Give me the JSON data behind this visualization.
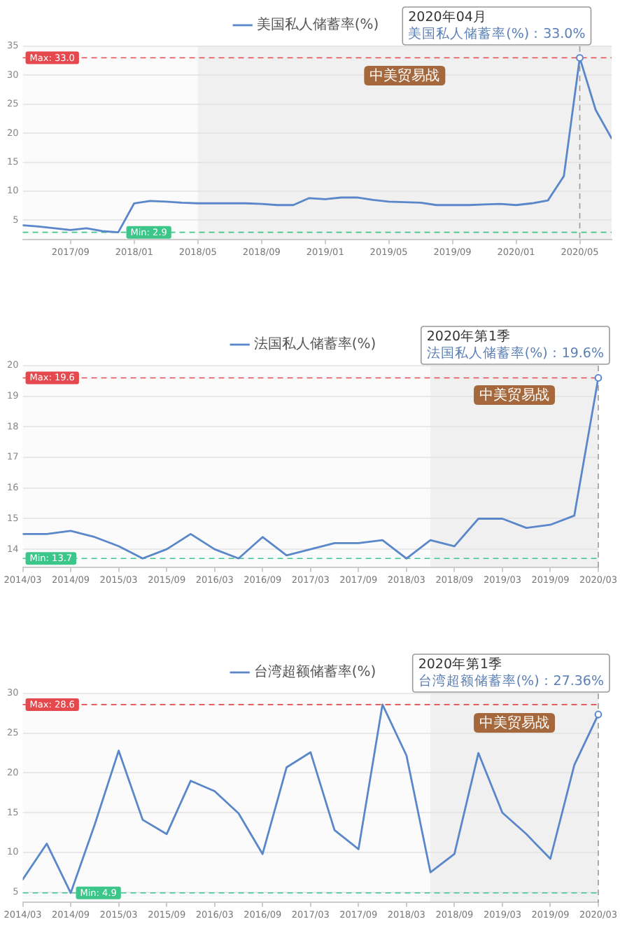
{
  "chart_data": [
    {
      "type": "line",
      "x": [
        "2017-06",
        "2017-07",
        "2017-08",
        "2017-09",
        "2017-10",
        "2017-11",
        "2017-12",
        "2018-01",
        "2018-02",
        "2018-03",
        "2018-04",
        "2018-05",
        "2018-06",
        "2018-07",
        "2018-08",
        "2018-09",
        "2018-10",
        "2018-11",
        "2018-12",
        "2019-01",
        "2019-02",
        "2019-03",
        "2019-04",
        "2019-05",
        "2019-06",
        "2019-07",
        "2019-08",
        "2019-09",
        "2019-10",
        "2019-11",
        "2019-12",
        "2020-01",
        "2020-02",
        "2020-03",
        "2020-04",
        "2020-05",
        "2020-06",
        "2020-07"
      ],
      "series": [
        {
          "name": "美国私人储蓄率(%)",
          "color": "#5a87c9",
          "values": [
            4.1,
            3.9,
            3.6,
            3.3,
            3.6,
            3.1,
            2.9,
            7.9,
            8.3,
            8.2,
            8.0,
            7.9,
            7.9,
            7.9,
            7.9,
            7.8,
            7.6,
            7.6,
            8.8,
            8.6,
            8.9,
            8.9,
            8.5,
            8.2,
            8.1,
            8.0,
            7.6,
            7.6,
            7.6,
            7.7,
            7.8,
            7.6,
            7.9,
            8.4,
            12.6,
            33.0,
            24.0,
            19.1
          ]
        }
      ],
      "xlim": [
        "2017-06",
        "2020-07"
      ],
      "xticks": [
        {
          "value": "2017-09",
          "label": "2017/09"
        },
        {
          "value": "2018-01",
          "label": "2018/01"
        },
        {
          "value": "2018-05",
          "label": "2018/05"
        },
        {
          "value": "2018-09",
          "label": "2018/09"
        },
        {
          "value": "2019-01",
          "label": "2019/01"
        },
        {
          "value": "2019-05",
          "label": "2019/05"
        },
        {
          "value": "2019-09",
          "label": "2019/09"
        },
        {
          "value": "2020-01",
          "label": "2020/01"
        },
        {
          "value": "2020-05",
          "label": "2020/05"
        }
      ],
      "ylim": [
        1.6,
        35
      ],
      "yticks": [
        5,
        10,
        15,
        20,
        25,
        30,
        35
      ],
      "grid": "y",
      "legend": "top",
      "marker": "none",
      "line_style": "solid",
      "ref_lines": [
        {
          "axis": "y",
          "value": 33.0,
          "label": "Max: 33.0",
          "color": "#e5484d",
          "line_style": "dashed"
        },
        {
          "axis": "y",
          "value": 2.9,
          "label": "Min: 2.9",
          "color": "#3cc68a",
          "line_style": "dashed"
        },
        {
          "axis": "x",
          "value": "2020-05",
          "color": "#9a9a9a",
          "line_style": "dashed"
        }
      ],
      "bands": [
        {
          "axis": "x",
          "from": "2018-05",
          "to": "2020-07",
          "label": "中美贸易战",
          "color": "#f0f0f0"
        }
      ],
      "annotations": [
        "2020年04月",
        {
          "text": "美国私人储蓄率(%)：33.0%",
          "x": "2020-05",
          "y": 33.0
        }
      ]
    },
    {
      "type": "line",
      "x": [
        "2014-03",
        "2014-06",
        "2014-09",
        "2014-12",
        "2015-03",
        "2015-06",
        "2015-09",
        "2015-12",
        "2016-03",
        "2016-06",
        "2016-09",
        "2016-12",
        "2017-03",
        "2017-06",
        "2017-09",
        "2017-12",
        "2018-03",
        "2018-06",
        "2018-09",
        "2018-12",
        "2019-03",
        "2019-06",
        "2019-09",
        "2019-12",
        "2020-03"
      ],
      "series": [
        {
          "name": "法国私人储蓄率(%)",
          "color": "#5a87c9",
          "values": [
            14.5,
            14.5,
            14.6,
            14.4,
            14.1,
            13.7,
            14.0,
            14.5,
            14.0,
            13.7,
            14.4,
            13.8,
            14.0,
            14.2,
            14.2,
            14.3,
            13.7,
            14.3,
            14.1,
            15.0,
            15.0,
            14.7,
            14.8,
            15.1,
            19.6
          ]
        }
      ],
      "xlim": [
        "2014-03",
        "2020-03"
      ],
      "xticks": [
        {
          "value": "2014-03",
          "label": "2014/03"
        },
        {
          "value": "2014-09",
          "label": "2014/09"
        },
        {
          "value": "2015-03",
          "label": "2015/03"
        },
        {
          "value": "2015-09",
          "label": "2015/09"
        },
        {
          "value": "2016-03",
          "label": "2016/03"
        },
        {
          "value": "2016-09",
          "label": "2016/09"
        },
        {
          "value": "2017-03",
          "label": "2017/03"
        },
        {
          "value": "2017-09",
          "label": "2017/09"
        },
        {
          "value": "2018-03",
          "label": "2018/03"
        },
        {
          "value": "2018-09",
          "label": "2018/09"
        },
        {
          "value": "2019-03",
          "label": "2019/03"
        },
        {
          "value": "2019-09",
          "label": "2019/09"
        },
        {
          "value": "2020-03",
          "label": "2020/03"
        }
      ],
      "ylim": [
        13.4,
        20
      ],
      "yticks": [
        14,
        15,
        16,
        17,
        18,
        19,
        20
      ],
      "grid": "y",
      "legend": "top",
      "marker": "none",
      "line_style": "solid",
      "ref_lines": [
        {
          "axis": "y",
          "value": 19.6,
          "label": "Max: 19.6",
          "color": "#e5484d",
          "line_style": "dashed"
        },
        {
          "axis": "y",
          "value": 13.7,
          "label": "Min: 13.7",
          "color": "#3cc68a",
          "line_style": "dashed"
        },
        {
          "axis": "x",
          "value": "2020-03",
          "color": "#9a9a9a",
          "line_style": "dashed"
        }
      ],
      "bands": [
        {
          "axis": "x",
          "from": "2018-06",
          "to": "2020-03",
          "label": "中美贸易战",
          "color": "#f0f0f0"
        }
      ],
      "annotations": [
        "2020年第1季",
        {
          "text": "法国私人储蓄率(%)：19.6%",
          "x": "2020-03",
          "y": 19.6
        }
      ]
    },
    {
      "type": "line",
      "x": [
        "2014-03",
        "2014-06",
        "2014-09",
        "2014-12",
        "2015-03",
        "2015-06",
        "2015-09",
        "2015-12",
        "2016-03",
        "2016-06",
        "2016-09",
        "2016-12",
        "2017-03",
        "2017-06",
        "2017-09",
        "2017-12",
        "2018-03",
        "2018-06",
        "2018-09",
        "2018-12",
        "2019-03",
        "2019-06",
        "2019-09",
        "2019-12",
        "2020-03"
      ],
      "series": [
        {
          "name": "台湾超额储蓄率(%)",
          "color": "#5a87c9",
          "values": [
            6.6,
            11.1,
            4.9,
            13.5,
            22.8,
            14.1,
            12.3,
            19.0,
            17.7,
            14.9,
            9.8,
            20.7,
            22.6,
            12.8,
            10.4,
            28.6,
            22.2,
            7.5,
            9.8,
            22.5,
            15.0,
            12.3,
            9.2,
            21.0,
            27.36
          ]
        }
      ],
      "xlim": [
        "2014-03",
        "2020-03"
      ],
      "xticks": [
        {
          "value": "2014-03",
          "label": "2014/03"
        },
        {
          "value": "2014-09",
          "label": "2014/09"
        },
        {
          "value": "2015-03",
          "label": "2015/03"
        },
        {
          "value": "2015-09",
          "label": "2015/09"
        },
        {
          "value": "2016-03",
          "label": "2016/03"
        },
        {
          "value": "2016-09",
          "label": "2016/09"
        },
        {
          "value": "2017-03",
          "label": "2017/03"
        },
        {
          "value": "2017-09",
          "label": "2017/09"
        },
        {
          "value": "2018-03",
          "label": "2018/03"
        },
        {
          "value": "2018-09",
          "label": "2018/09"
        },
        {
          "value": "2019-03",
          "label": "2019/03"
        },
        {
          "value": "2019-09",
          "label": "2019/09"
        },
        {
          "value": "2020-03",
          "label": "2020/03"
        }
      ],
      "ylim": [
        3.7,
        30
      ],
      "yticks": [
        5,
        10,
        15,
        20,
        25,
        30
      ],
      "grid": "y",
      "legend": "top",
      "marker": "none",
      "line_style": "solid",
      "ref_lines": [
        {
          "axis": "y",
          "value": 28.6,
          "label": "Max: 28.6",
          "color": "#e5484d",
          "line_style": "dashed"
        },
        {
          "axis": "y",
          "value": 4.9,
          "label": "Min: 4.9",
          "color": "#3cc68a",
          "line_style": "dashed"
        },
        {
          "axis": "x",
          "value": "2020-03",
          "color": "#9a9a9a",
          "line_style": "dashed"
        }
      ],
      "bands": [
        {
          "axis": "x",
          "from": "2018-06",
          "to": "2020-03",
          "label": "中美贸易战",
          "color": "#f0f0f0"
        }
      ],
      "annotations": [
        "2020年第1季",
        {
          "text": "台湾超额储蓄率(%)：27.36%",
          "x": "2020-03",
          "y": 27.36
        }
      ]
    }
  ]
}
